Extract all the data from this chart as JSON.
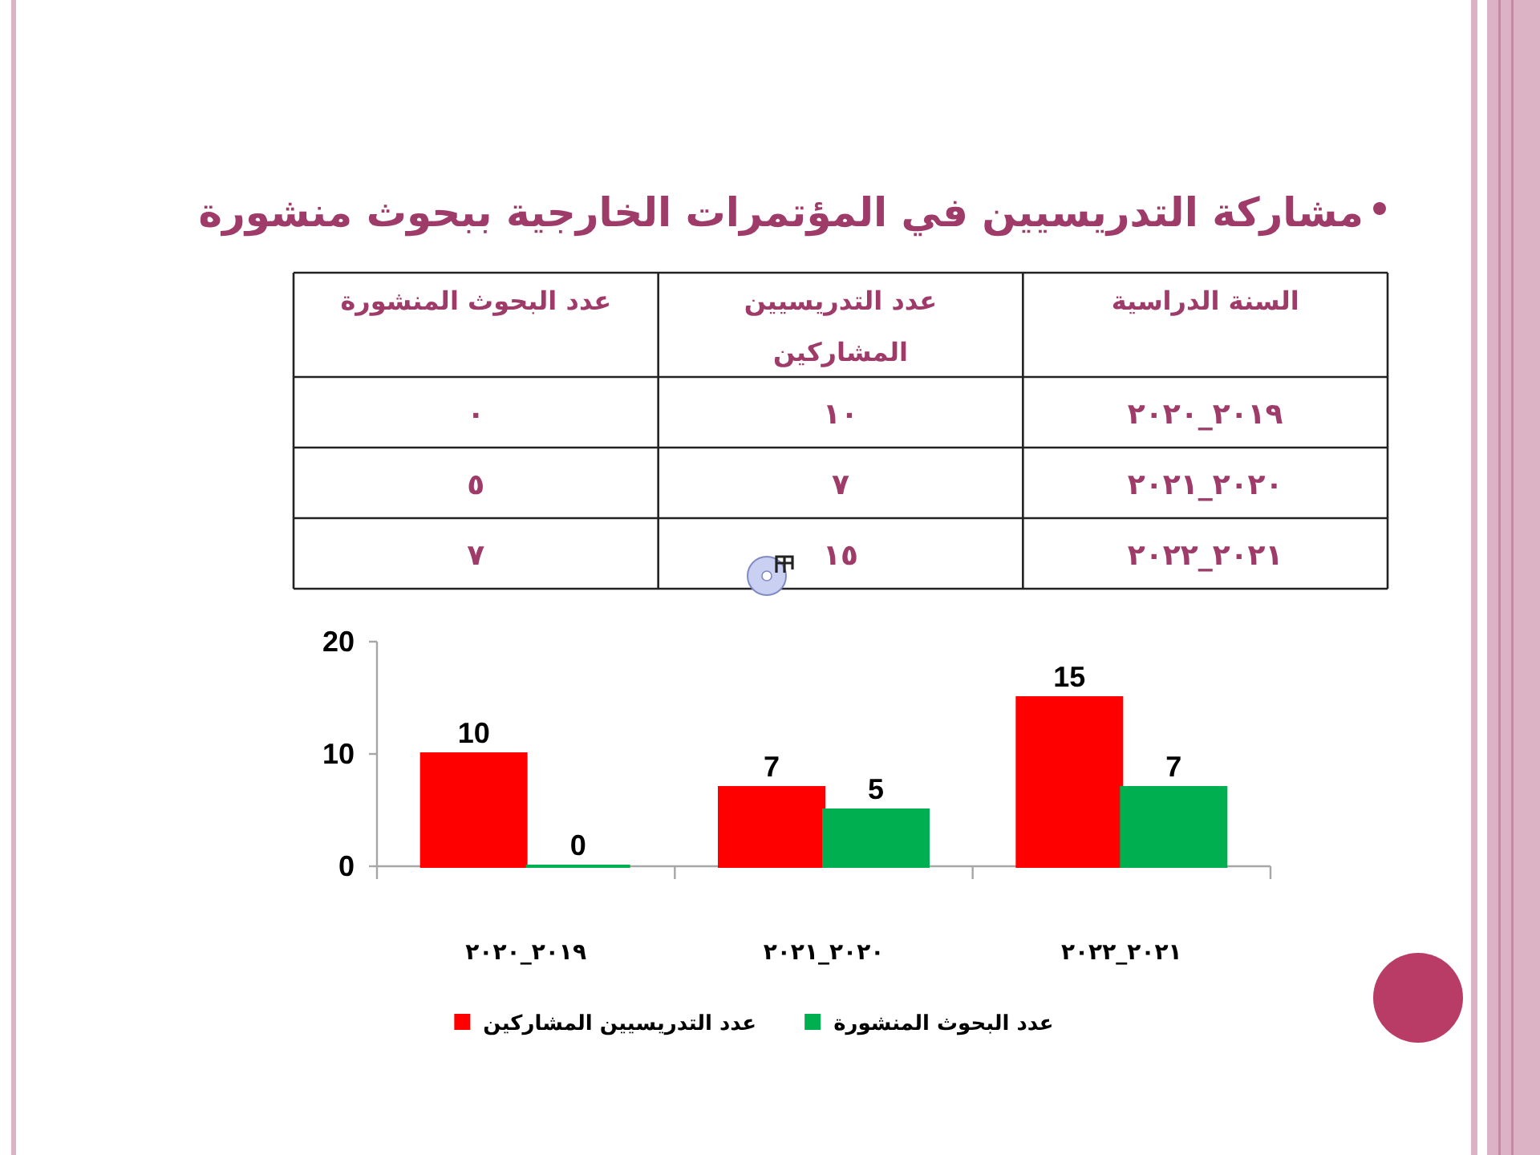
{
  "chart_data": [
    {
      "type": "other",
      "title": "مشاركة التدريسيين في المؤتمرات الخارجية ببحوث منشورة",
      "annotations": [
        "السنة الدراسية",
        "عدد التدريسيين المشاركين",
        "عدد البحوث المنشورة",
        "٢٠١٩_٢٠٢٠",
        "١٠",
        "٠",
        "٢٠٢٠_٢٠٢١",
        "٧",
        "٥",
        "٢٠٢١_٢٠٢٢",
        "١٥",
        "٧"
      ]
    },
    {
      "type": "bar",
      "categories": [
        "٢٠١٩_٢٠٢٠",
        "٢٠٢٠_٢٠٢١",
        "٢٠٢١_٢٠٢٢"
      ],
      "series": [
        {
          "name": "عدد التدريسيين المشاركين",
          "color": "#ff0000",
          "values": [
            10,
            7,
            15
          ]
        },
        {
          "name": "عدد البحوث المنشورة",
          "color": "#00b050",
          "values": [
            0,
            5,
            7
          ]
        }
      ],
      "ylim": [
        0,
        20
      ],
      "yticks": [
        0,
        10,
        20
      ],
      "data_labels": true,
      "legend": "bottom",
      "grid": false
    }
  ]
}
